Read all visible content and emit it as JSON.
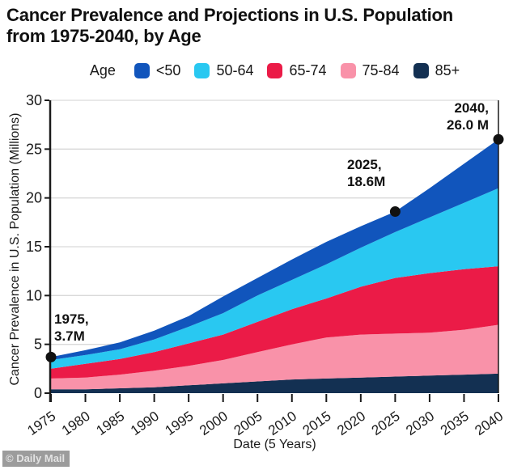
{
  "title": {
    "line1": "Cancer Prevalence and Projections in U.S. Population",
    "line2": "from 1975-2040, by Age"
  },
  "legend": {
    "title": "Age"
  },
  "chart_data": {
    "type": "area",
    "stacked": true,
    "x": [
      1975,
      1980,
      1985,
      1990,
      1995,
      2000,
      2005,
      2010,
      2015,
      2020,
      2025,
      2030,
      2035,
      2040
    ],
    "series": [
      {
        "name": "<50",
        "color": "#1155bc",
        "values": [
          0.3,
          0.5,
          0.7,
          0.9,
          1.1,
          1.7,
          1.8,
          2.1,
          2.3,
          2.2,
          2.1,
          3.0,
          4.0,
          5.0
        ]
      },
      {
        "name": "50-64",
        "color": "#29c8f1",
        "values": [
          0.9,
          0.9,
          1.0,
          1.3,
          1.7,
          2.2,
          2.7,
          3.0,
          3.5,
          4.0,
          4.7,
          5.7,
          6.8,
          8.0
        ]
      },
      {
        "name": "65-74",
        "color": "#eb1b47",
        "values": [
          1.0,
          1.4,
          1.6,
          1.9,
          2.3,
          2.6,
          3.1,
          3.6,
          4.0,
          4.9,
          5.7,
          6.1,
          6.2,
          6.0
        ]
      },
      {
        "name": "75-84",
        "color": "#f992a9",
        "values": [
          1.1,
          1.2,
          1.4,
          1.7,
          2.0,
          2.4,
          3.0,
          3.6,
          4.2,
          4.4,
          4.4,
          4.4,
          4.6,
          5.0
        ]
      },
      {
        "name": "85+",
        "color": "#133052",
        "values": [
          0.4,
          0.4,
          0.5,
          0.6,
          0.8,
          1.0,
          1.2,
          1.4,
          1.5,
          1.6,
          1.7,
          1.8,
          1.9,
          2.0
        ]
      }
    ],
    "totals": [
      3.7,
      4.4,
      5.2,
      6.4,
      7.9,
      9.9,
      11.8,
      13.7,
      15.5,
      17.1,
      18.6,
      21.0,
      23.5,
      26.0
    ],
    "title": "Cancer Prevalence and Projections in U.S. Population from 1975-2040, by Age",
    "xlabel": "Date (5 Years)",
    "ylabel": "Cancer Prevalence in U.S. Population (Millions)",
    "ylim": [
      0,
      30
    ],
    "yticks": [
      0,
      5,
      10,
      15,
      20,
      25,
      30
    ],
    "grid": true,
    "legend_position": "top",
    "annotations": [
      {
        "x": 1975,
        "y": 3.7,
        "line1": "1975,",
        "line2": "3.7M"
      },
      {
        "x": 2025,
        "y": 18.6,
        "line1": "2025,",
        "line2": "18.6M"
      },
      {
        "x": 2040,
        "y": 26.0,
        "line1": "2040,",
        "line2": "26.0 M"
      }
    ]
  },
  "colors": {
    "grid": "#d9d9d9",
    "axis": "#1a1a1a",
    "dot": "#111111"
  },
  "watermark": "© Daily Mail"
}
